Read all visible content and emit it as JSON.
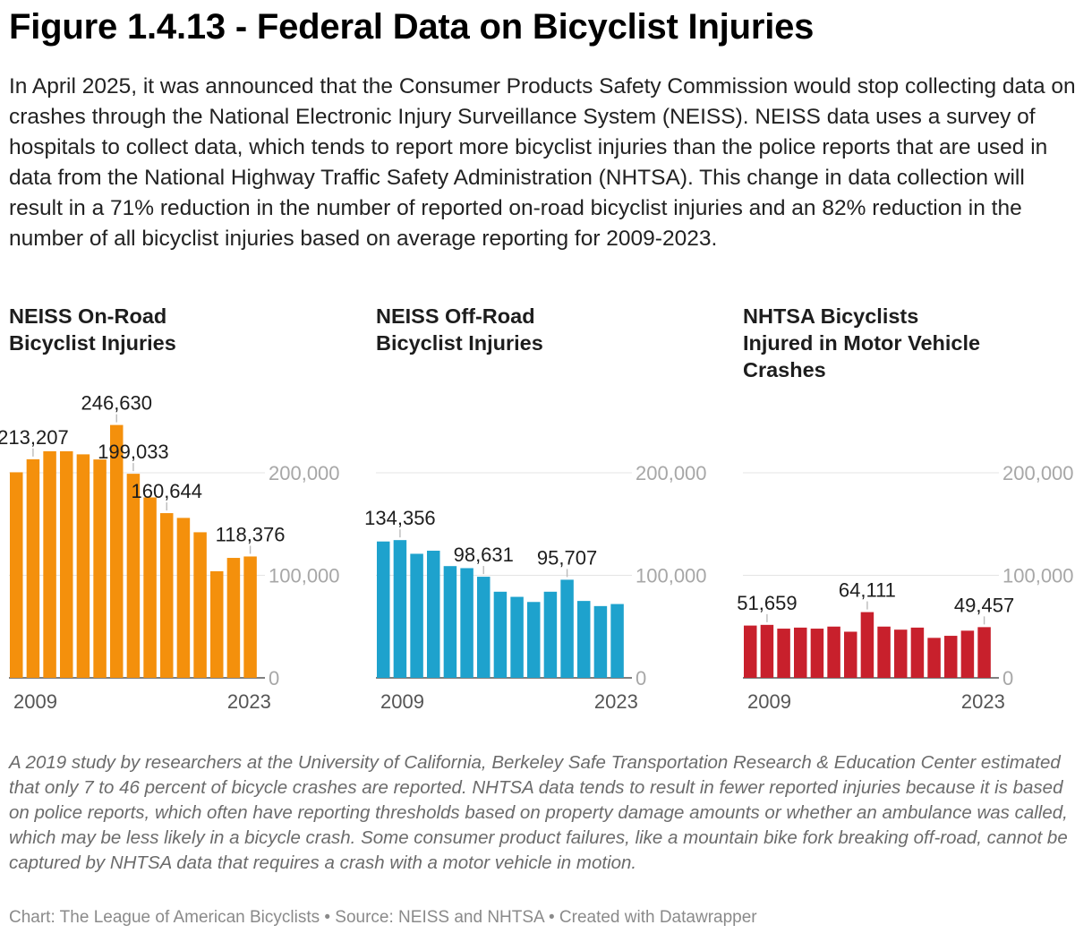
{
  "title": "Figure 1.4.13 - Federal Data on Bicyclist Injuries",
  "intro": "In April 2025, it was announced that the Consumer Products Safety Commission would stop collecting data on crashes through the National Electronic Injury Surveillance System (NEISS). NEISS data uses a survey of hospitals to collect data, which tends to report more bicyclist injuries than the police reports that are used in data from the National Highway Traffic Safety Administration (NHTSA). This change in data collection will result in a 71% reduction in the number of reported on-road bicyclist injuries and an 82% reduction in the number of all bicyclist injuries based on average reporting for 2009-2023.",
  "note": "A 2019 study by researchers at the University of California, Berkeley Safe Transportation Research & Education Center estimated that only 7 to 46 percent of bicycle crashes are reported. NHTSA data tends to result in fewer reported injuries because it is based on police reports, which often have reporting thresholds based on property damage amounts or whether an ambulance was called, which may be less likely in a bicycle crash. Some consumer product failures, like a mountain bike fork breaking off-road, cannot be captured by NHTSA data that requires a crash with a motor vehicle in motion.",
  "credit": "Chart: The League of American Bicyclists • Source: NEISS and NHTSA • Created with Datawrapper",
  "colors": {
    "onroad": "#f4900c",
    "offroad": "#1ea2cd",
    "nhtsa": "#c8202c",
    "grid": "#e4e4e4",
    "axis": "#a7a7a7"
  },
  "chart_data": [
    {
      "type": "bar",
      "title": "NEISS On-Road Bicyclist Injuries",
      "title_lines": [
        "NEISS On-Road",
        "Bicyclist Injuries"
      ],
      "color": "#f4900c",
      "categories": [
        "2009",
        "2010",
        "2011",
        "2012",
        "2013",
        "2014",
        "2015",
        "2016",
        "2017",
        "2018",
        "2019",
        "2020",
        "2021",
        "2022",
        "2023"
      ],
      "values": [
        200500,
        213207,
        221000,
        221000,
        218000,
        213000,
        246630,
        199033,
        176000,
        160644,
        156000,
        142000,
        104000,
        117000,
        118376
      ],
      "labeled": [
        {
          "index": 1,
          "text": "213,207"
        },
        {
          "index": 6,
          "text": "246,630"
        },
        {
          "index": 7,
          "text": "199,033"
        },
        {
          "index": 9,
          "text": "160,644"
        },
        {
          "index": 14,
          "text": "118,376"
        }
      ],
      "ylim": [
        0,
        200000
      ],
      "yticks": [
        0,
        100000,
        200000
      ],
      "ytick_labels": [
        "0",
        "100,000",
        "200,000"
      ],
      "xtick_labels": [
        "2009",
        "2023"
      ]
    },
    {
      "type": "bar",
      "title": "NEISS Off-Road Bicyclist Injuries",
      "title_lines": [
        "NEISS Off-Road",
        "Bicyclist Injuries"
      ],
      "color": "#1ea2cd",
      "categories": [
        "2009",
        "2010",
        "2011",
        "2012",
        "2013",
        "2014",
        "2015",
        "2016",
        "2017",
        "2018",
        "2019",
        "2020",
        "2021",
        "2022",
        "2023"
      ],
      "values": [
        133000,
        134356,
        121000,
        124000,
        109000,
        107000,
        98631,
        84000,
        79000,
        74000,
        84000,
        95707,
        75000,
        70000,
        72000
      ],
      "labeled": [
        {
          "index": 1,
          "text": "134,356"
        },
        {
          "index": 6,
          "text": "98,631"
        },
        {
          "index": 11,
          "text": "95,707"
        }
      ],
      "ylim": [
        0,
        200000
      ],
      "yticks": [
        0,
        100000,
        200000
      ],
      "ytick_labels": [
        "0",
        "100,000",
        "200,000"
      ],
      "xtick_labels": [
        "2009",
        "2023"
      ]
    },
    {
      "type": "bar",
      "title": "NHTSA Bicyclists Injured in Motor Vehicle Crashes",
      "title_lines": [
        "NHTSA Bicyclists",
        "Injured in Motor Vehicle",
        "Crashes"
      ],
      "color": "#c8202c",
      "categories": [
        "2009",
        "2010",
        "2011",
        "2012",
        "2013",
        "2014",
        "2015",
        "2016",
        "2017",
        "2018",
        "2019",
        "2020",
        "2021",
        "2022",
        "2023"
      ],
      "values": [
        51000,
        51659,
        48000,
        49000,
        48000,
        50000,
        45000,
        64111,
        50000,
        47000,
        49000,
        39000,
        41000,
        46000,
        49457
      ],
      "labeled": [
        {
          "index": 1,
          "text": "51,659"
        },
        {
          "index": 7,
          "text": "64,111"
        },
        {
          "index": 14,
          "text": "49,457"
        }
      ],
      "ylim": [
        0,
        200000
      ],
      "yticks": [
        0,
        100000,
        200000
      ],
      "ytick_labels": [
        "0",
        "100,000",
        "200,000"
      ],
      "xtick_labels": [
        "2009",
        "2023"
      ]
    }
  ]
}
